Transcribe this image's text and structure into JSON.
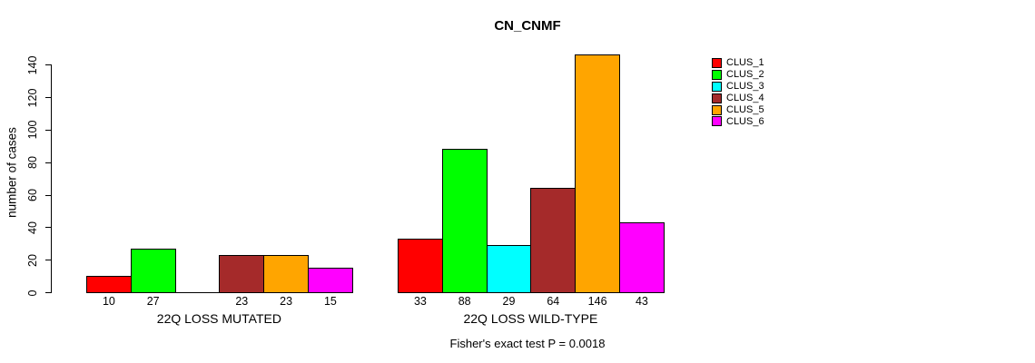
{
  "chart_data": {
    "type": "bar",
    "grouped": true,
    "title": "CN_CNMF",
    "ylabel": "number of cases",
    "xlabel": "",
    "ylim": [
      0,
      140
    ],
    "yticks": [
      0,
      20,
      40,
      60,
      80,
      100,
      120,
      140
    ],
    "categories": [
      "22Q LOSS MUTATED",
      "22Q LOSS WILD-TYPE"
    ],
    "series": [
      {
        "name": "CLUS_1",
        "color": "#FF0000",
        "values": [
          10,
          33
        ]
      },
      {
        "name": "CLUS_2",
        "color": "#00FF00",
        "values": [
          27,
          88
        ]
      },
      {
        "name": "CLUS_3",
        "color": "#00FFFF",
        "values": [
          0,
          29
        ]
      },
      {
        "name": "CLUS_4",
        "color": "#A52A2A",
        "values": [
          23,
          64
        ]
      },
      {
        "name": "CLUS_5",
        "color": "#FFA500",
        "values": [
          23,
          146
        ]
      },
      {
        "name": "CLUS_6",
        "color": "#FF00FF",
        "values": [
          15,
          43
        ]
      }
    ],
    "bar_value_labels_shown": true,
    "zero_value_label_hidden": true,
    "grid": false,
    "legend_position": "top-right",
    "annotation": "Fisher's exact test P = 0.0018",
    "axis_color": "#000000",
    "bar_border_color": "#000000"
  }
}
